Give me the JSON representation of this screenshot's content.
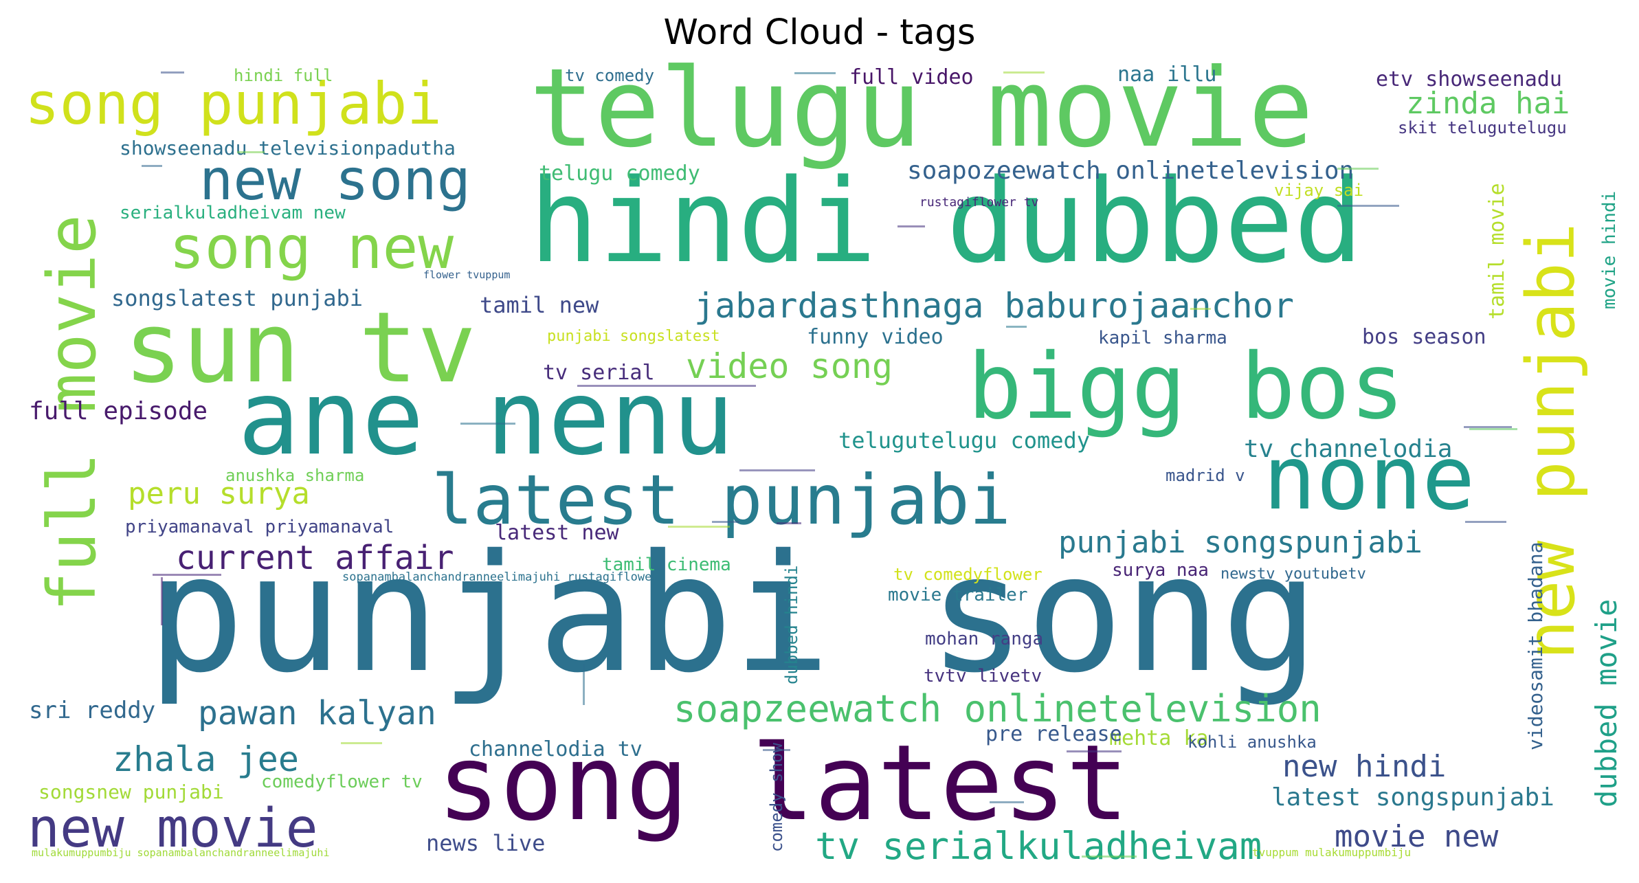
{
  "chart_data": {
    "type": "wordcloud",
    "title": "Word Cloud - tags",
    "colormap": "viridis",
    "background": "#ffffff",
    "words": [
      {
        "text": "punjabi song",
        "weight": 1.0,
        "color": "#2c718e"
      },
      {
        "text": "hindi dubbed",
        "weight": 0.78,
        "color": "#28ae80"
      },
      {
        "text": "telugu movie",
        "weight": 0.72,
        "color": "#5ec962"
      },
      {
        "text": "ane nenu",
        "weight": 0.7,
        "color": "#21918c"
      },
      {
        "text": "song latest",
        "weight": 0.74,
        "color": "#440154"
      },
      {
        "text": "sun tv",
        "weight": 0.65,
        "color": "#7ad151"
      },
      {
        "text": "bigg bos",
        "weight": 0.62,
        "color": "#35b779"
      },
      {
        "text": "none",
        "weight": 0.56,
        "color": "#1f988b"
      },
      {
        "text": "latest punjabi",
        "weight": 0.42,
        "color": "#287c8e"
      },
      {
        "text": "full movie",
        "weight": 0.43,
        "color": "#84d44b"
      },
      {
        "text": "new punjabi",
        "weight": 0.43,
        "color": "#d8e219"
      },
      {
        "text": "song punjabi",
        "weight": 0.36,
        "color": "#d0e11c"
      },
      {
        "text": "song new",
        "weight": 0.36,
        "color": "#84d44b"
      },
      {
        "text": "new song",
        "weight": 0.34,
        "color": "#2c728e"
      },
      {
        "text": "new movie",
        "weight": 0.33,
        "color": "#443a83"
      },
      {
        "text": "soapzeewatch onlinetelevision",
        "weight": 0.24,
        "color": "#4ac16d"
      },
      {
        "text": "tv serialkuladheivam",
        "weight": 0.24,
        "color": "#22a884"
      },
      {
        "text": "jabardasthnaga baburojaanchor",
        "weight": 0.22,
        "color": "#2a788e"
      },
      {
        "text": "video song",
        "weight": 0.22,
        "color": "#75d054"
      },
      {
        "text": "pawan kalyan",
        "weight": 0.21,
        "color": "#2c718e"
      },
      {
        "text": "zhala jee",
        "weight": 0.21,
        "color": "#287c8e"
      },
      {
        "text": "current affair",
        "weight": 0.21,
        "color": "#482173"
      },
      {
        "text": "peru surya",
        "weight": 0.19,
        "color": "#b5de2b"
      },
      {
        "text": "zinda hai",
        "weight": 0.19,
        "color": "#5ec962"
      },
      {
        "text": "punjabi songspunjabi",
        "weight": 0.19,
        "color": "#29798e"
      },
      {
        "text": "new hindi",
        "weight": 0.19,
        "color": "#3b528b"
      },
      {
        "text": "movie new",
        "weight": 0.19,
        "color": "#3e4a89"
      },
      {
        "text": "dubbed movie",
        "weight": 0.19,
        "color": "#1fa088"
      },
      {
        "text": "soapozeewatch onlinetelevision",
        "weight": 0.15,
        "color": "#34618d"
      },
      {
        "text": "tv channelodia",
        "weight": 0.15,
        "color": "#26828e"
      },
      {
        "text": "latest songspunjabi",
        "weight": 0.15,
        "color": "#2a788e"
      },
      {
        "text": "full episode",
        "weight": 0.15,
        "color": "#481a6c"
      },
      {
        "text": "tamil movie",
        "weight": 0.12,
        "color": "#b5de2b"
      },
      {
        "text": "movie hindi",
        "weight": 0.1,
        "color": "#20a386"
      },
      {
        "text": "telugutelugu comedy",
        "weight": 0.13,
        "color": "#20938c"
      },
      {
        "text": "sri reddy",
        "weight": 0.14,
        "color": "#31688e"
      },
      {
        "text": "tamil new",
        "weight": 0.13,
        "color": "#3e4989"
      },
      {
        "text": "etv showseenadu",
        "weight": 0.12,
        "color": "#482878"
      },
      {
        "text": "showseenadu televisionpadutha",
        "weight": 0.11,
        "color": "#2d708e"
      },
      {
        "text": "songslatest punjabi",
        "weight": 0.13,
        "color": "#31688e"
      },
      {
        "text": "channelodia tv",
        "weight": 0.12,
        "color": "#2e6f8e"
      },
      {
        "text": "news live",
        "weight": 0.12,
        "color": "#3e4c8a"
      },
      {
        "text": "funny video",
        "weight": 0.11,
        "color": "#2c718e"
      },
      {
        "text": "bos season",
        "weight": 0.11,
        "color": "#433e85"
      },
      {
        "text": "tv serial",
        "weight": 0.11,
        "color": "#472d7b"
      },
      {
        "text": "telugu comedy",
        "weight": 0.11,
        "color": "#3fbc73"
      },
      {
        "text": "latest new",
        "weight": 0.11,
        "color": "#482979"
      },
      {
        "text": "full video",
        "weight": 0.11,
        "color": "#481668"
      },
      {
        "text": "naa illu",
        "weight": 0.11,
        "color": "#2b758e"
      },
      {
        "text": "mehta ka",
        "weight": 0.1,
        "color": "#a5db36"
      },
      {
        "text": "pre release",
        "weight": 0.1,
        "color": "#38598c"
      },
      {
        "text": "kapil sharma",
        "weight": 0.09,
        "color": "#39568c"
      },
      {
        "text": "anushka sharma",
        "weight": 0.09,
        "color": "#70cf57"
      },
      {
        "text": "skit telugutelugu",
        "weight": 0.09,
        "color": "#453581"
      },
      {
        "text": "vijay sai",
        "weight": 0.09,
        "color": "#c2df23"
      },
      {
        "text": "hindi full",
        "weight": 0.09,
        "color": "#7ad151"
      },
      {
        "text": "tv comedy",
        "weight": 0.09,
        "color": "#2e6e8e"
      },
      {
        "text": "priyamanaval priyamanaval",
        "weight": 0.09,
        "color": "#414487"
      },
      {
        "text": "tamil cinema",
        "weight": 0.09,
        "color": "#3dbc74"
      },
      {
        "text": "surya naa",
        "weight": 0.09,
        "color": "#482475"
      },
      {
        "text": "newstv youtubetv",
        "weight": 0.08,
        "color": "#31688e"
      },
      {
        "text": "tv comedyflower",
        "weight": 0.08,
        "color": "#d2e21b"
      },
      {
        "text": "movie trailer",
        "weight": 0.09,
        "color": "#2a788e"
      },
      {
        "text": "mohan ranga",
        "weight": 0.09,
        "color": "#433e85"
      },
      {
        "text": "tvtv livetv",
        "weight": 0.09,
        "color": "#46327e"
      },
      {
        "text": "kohli anushka",
        "weight": 0.08,
        "color": "#38588c"
      },
      {
        "text": "comedy show",
        "weight": 0.08,
        "color": "#3b518b"
      },
      {
        "text": "dubbed hindi",
        "weight": 0.08,
        "color": "#25838e"
      },
      {
        "text": "videosamit bhadana",
        "weight": 0.09,
        "color": "#34618d"
      },
      {
        "text": "songsnew punjabi",
        "weight": 0.09,
        "color": "#a2da37"
      },
      {
        "text": "comedyflower tv",
        "weight": 0.09,
        "color": "#6ccd5a"
      },
      {
        "text": "madrid v",
        "weight": 0.08,
        "color": "#39558c"
      },
      {
        "text": "serialkuladheivam new",
        "weight": 0.08,
        "color": "#2ab07f"
      },
      {
        "text": "punjabi songslatest",
        "weight": 0.07,
        "color": "#c8e020"
      },
      {
        "text": "rustagiflower tv",
        "weight": 0.05,
        "color": "#482878"
      },
      {
        "text": "flower tvuppum",
        "weight": 0.04,
        "color": "#34618d"
      },
      {
        "text": "sopanambalanchandranneelimajuhi rustagiflower",
        "weight": 0.05,
        "color": "#2c728e"
      },
      {
        "text": "mulakumuppumbiju sopanambalanchandranneelimajuhi",
        "weight": 0.04,
        "color": "#a0da39"
      },
      {
        "text": "tvuppum mulakumuppumbiju",
        "weight": 0.04,
        "color": "#a8db34"
      }
    ]
  }
}
